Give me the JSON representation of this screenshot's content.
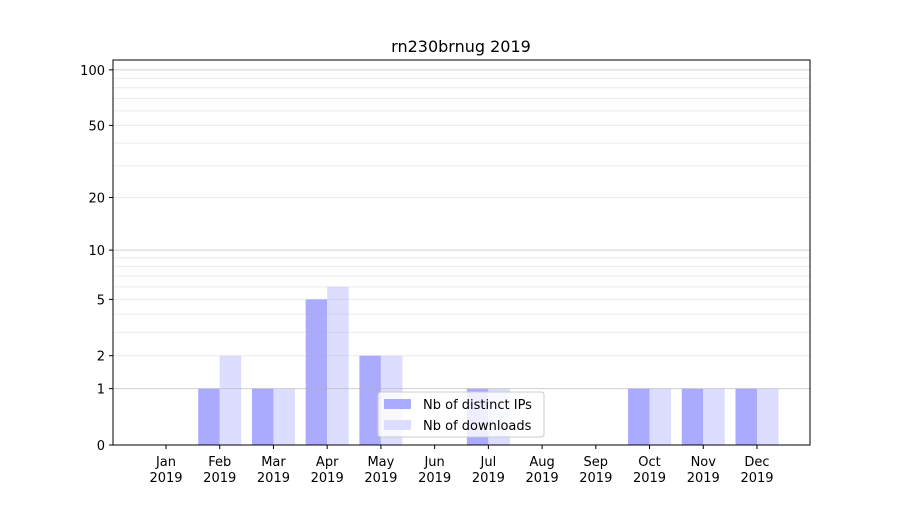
{
  "chart_data": {
    "type": "bar",
    "title": "rn230brnug 2019",
    "xlabel": "",
    "ylabel": "",
    "yscale": "log(1+y)",
    "ylim": [
      0,
      113
    ],
    "yticks": [
      0,
      1,
      2,
      5,
      10,
      20,
      50,
      100
    ],
    "grid": true,
    "legend": "bottom-center",
    "categories": [
      "Jan\n2019",
      "Feb\n2019",
      "Mar\n2019",
      "Apr\n2019",
      "May\n2019",
      "Jun\n2019",
      "Jul\n2019",
      "Aug\n2019",
      "Sep\n2019",
      "Oct\n2019",
      "Nov\n2019",
      "Dec\n2019"
    ],
    "series": [
      {
        "name": "Nb of distinct IPs",
        "color": "#aaaaff",
        "values": [
          0,
          1,
          1,
          5,
          2,
          0,
          1,
          0,
          0,
          1,
          1,
          1
        ]
      },
      {
        "name": "Nb of downloads",
        "color": "#ddddff",
        "values": [
          0,
          2,
          1,
          6,
          2,
          0,
          1,
          0,
          0,
          1,
          1,
          1
        ]
      }
    ]
  }
}
